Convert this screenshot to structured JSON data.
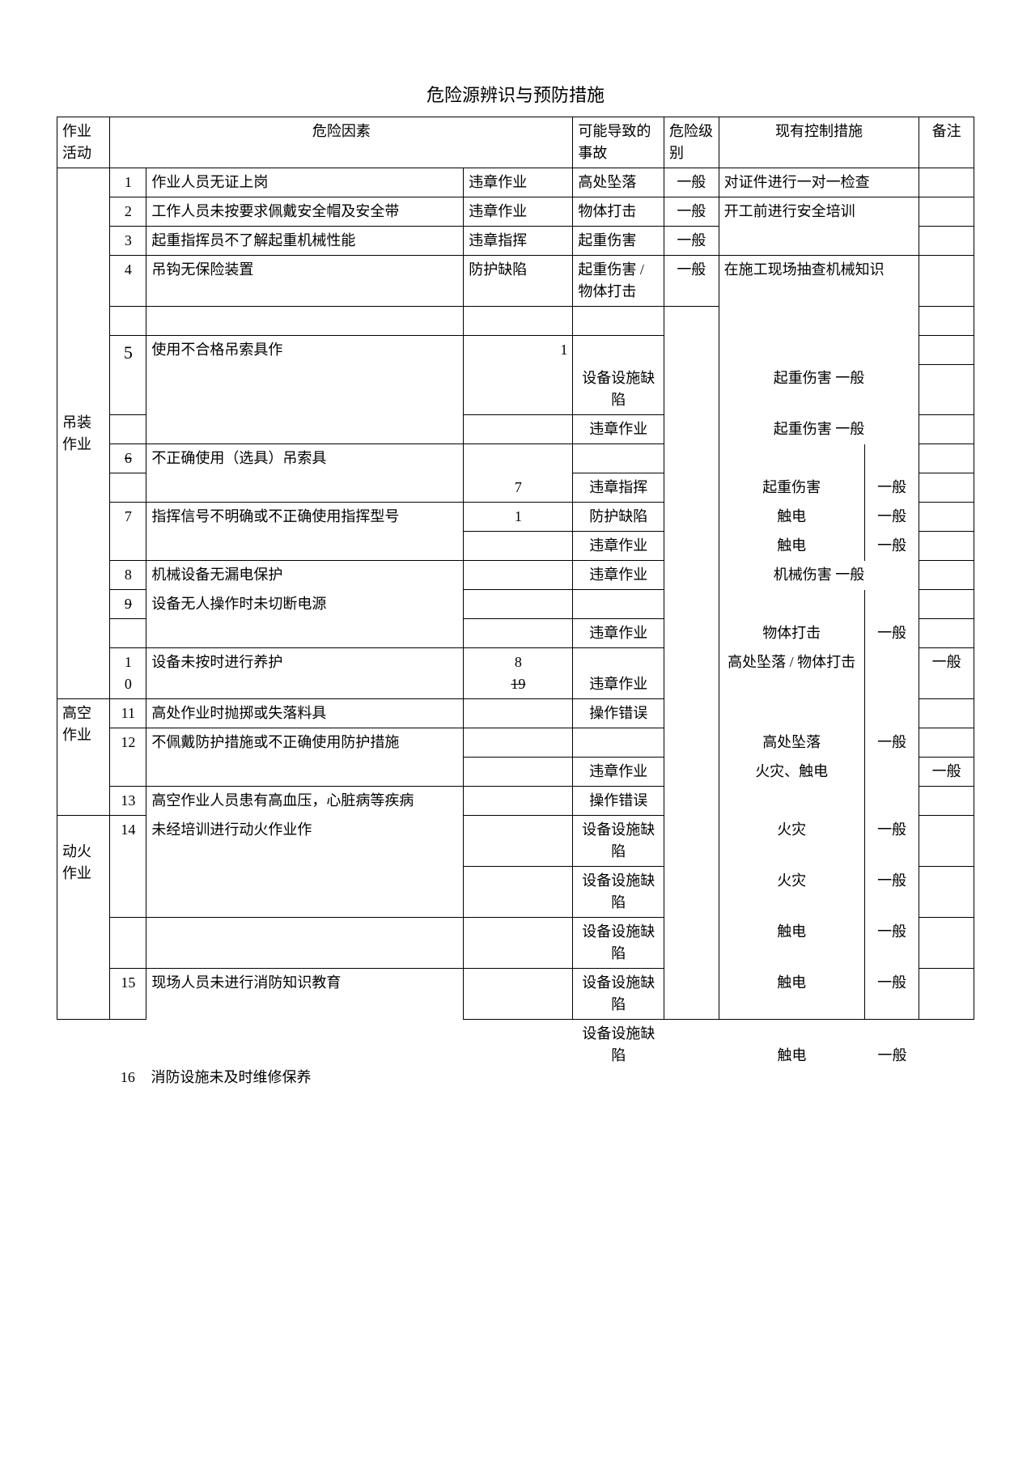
{
  "title": "危险源辨识与预防措施",
  "header": {
    "activity": "作业活动",
    "hazard": "危险因素",
    "accident": "可能导致的事故",
    "level": "危险级别",
    "control": "现有控制措施",
    "note": "备注"
  },
  "act1": "吊装作业",
  "act2": "高空作业",
  "act3": "动火作业",
  "n1": "1",
  "n2": "2",
  "n3": "3",
  "n4": "4",
  "n5": "5",
  "n6": "6",
  "n7": "7",
  "n8": "8",
  "n9": "9",
  "n10a": "1",
  "n10b": "0",
  "n11": "11",
  "n12": "12",
  "n13": "13",
  "n14": "14",
  "n15": "15",
  "n16": "16",
  "h1": "作业人员无证上岗",
  "h2": "工作人员未按要求佩戴安全帽及安全带",
  "h3": "起重指挥员不了解起重机械性能",
  "h4": "吊钩无保险装置",
  "h5": "使用不合格吊索具作",
  "h6": "不正确使用（选具）吊索具",
  "h7": "指挥信号不明确或不正确使用指挥型号",
  "h8": "机械设备无漏电保护",
  "h9": "设备无人操作时未切断电源",
  "h10": "设备未按时进行养护",
  "h11": "高处作业时抛掷或失落料具",
  "h12": "不佩戴防护措施或不正确使用防护措施",
  "h13": "高空作业人员患有高血压，心脏病等疾病",
  "h14": "未经培训进行动火作业作",
  "h15": "现场人员未进行消防知识教育",
  "h16": "消防设施未及时维修保养",
  "midnum1": "1",
  "midnum7": "7",
  "midnum1b": "1",
  "midnum8": "8",
  "midnum19": "19",
  "v_wz": "违章作业",
  "v_wzzh": "违章指挥",
  "v_fhqx": "防护缺陷",
  "v_sbqx": "设备设施缺陷",
  "v_czcw": "操作错误",
  "a1": "高处坠落",
  "a2": "物体打击",
  "a3": "起重伤害",
  "a4": "起重伤害 / 物体打击",
  "a_qz": "起重伤害",
  "a_cd": "触电",
  "a_jx": "机械伤害",
  "a_wt": "物体打击",
  "a_gz": "高处坠落 / 物体打击",
  "a_gcz": "高处坠落",
  "a_hz": "火灾、触电",
  "a_hz2": "火灾",
  "lvl": "一般",
  "c1": "对证件进行一对一检查",
  "c2": "开工前进行安全培训",
  "c3": "在施工现场抽查机械知识",
  "qz_yb": "起重伤害 一般",
  "jx_yb": "机械伤害 一般"
}
